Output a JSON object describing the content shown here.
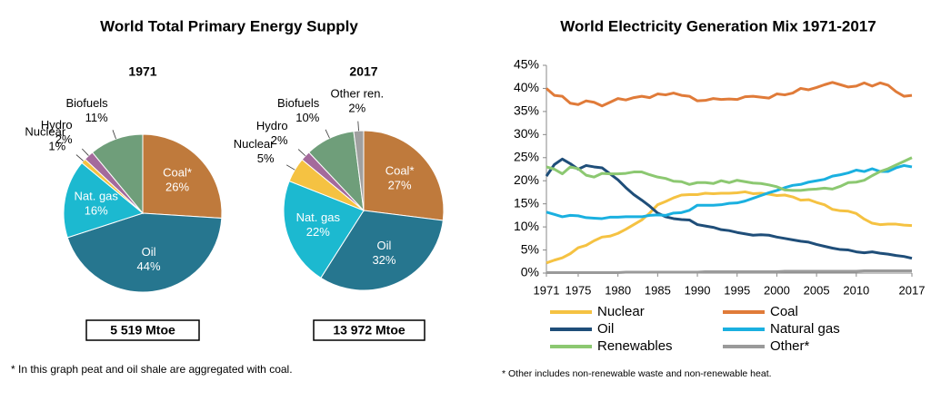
{
  "left_panel": {
    "title": "World Total Primary Energy Supply",
    "note": "* In this graph peat and oil shale are aggregated with coal."
  },
  "chart_data": [
    {
      "type": "pie",
      "title": "1971",
      "total": "5 519 Mtoe",
      "categories": [
        "Coal*",
        "Oil",
        "Nat. gas",
        "Nuclear",
        "Hydro",
        "Biofuels"
      ],
      "values": [
        26,
        44,
        16,
        1,
        2,
        11
      ],
      "value_labels": [
        "26%",
        "44%",
        "16%",
        "1%",
        "2%",
        "11%"
      ],
      "colors": [
        "#bf7a3c",
        "#26768f",
        "#1cb9d0",
        "#f5c242",
        "#a46a9c",
        "#6f9e7a"
      ]
    },
    {
      "type": "pie",
      "title": "2017",
      "total": "13 972 Mtoe",
      "categories": [
        "Coal*",
        "Oil",
        "Nat. gas",
        "Nuclear",
        "Hydro",
        "Biofuels",
        "Other ren."
      ],
      "values": [
        27,
        32,
        22,
        5,
        2,
        10,
        2
      ],
      "value_labels": [
        "27%",
        "32%",
        "22%",
        "5%",
        "2%",
        "10%",
        "2%"
      ],
      "colors": [
        "#bf7a3c",
        "#26768f",
        "#1cb9d0",
        "#f5c242",
        "#a46a9c",
        "#6f9e7a",
        "#a0a0a0"
      ]
    },
    {
      "type": "line",
      "title": "World Electricity Generation Mix 1971-2017",
      "note": "* Other includes non-renewable waste and non-renewable heat.",
      "x": [
        1971,
        1972,
        1973,
        1974,
        1975,
        1976,
        1977,
        1978,
        1979,
        1980,
        1981,
        1982,
        1983,
        1984,
        1985,
        1986,
        1987,
        1988,
        1989,
        1990,
        1991,
        1992,
        1993,
        1994,
        1995,
        1996,
        1997,
        1998,
        1999,
        2000,
        2001,
        2002,
        2003,
        2004,
        2005,
        2006,
        2007,
        2008,
        2009,
        2010,
        2011,
        2012,
        2013,
        2014,
        2015,
        2016,
        2017
      ],
      "xlim": [
        1971,
        2017
      ],
      "xticks": [
        1971,
        1975,
        1980,
        1985,
        1990,
        1995,
        2000,
        2005,
        2010,
        2017
      ],
      "ylim": [
        0,
        45
      ],
      "yticks": [
        {
          "value": 0,
          "label": "0%"
        },
        {
          "value": 5,
          "label": "5%"
        },
        {
          "value": 10,
          "label": "10%"
        },
        {
          "value": 15,
          "label": "15%"
        },
        {
          "value": 20,
          "label": "20%"
        },
        {
          "value": 25,
          "label": "25%"
        },
        {
          "value": 30,
          "label": "30%"
        },
        {
          "value": 35,
          "label": "35%"
        },
        {
          "value": 40,
          "label": "40%"
        },
        {
          "value": 45,
          "label": "45%"
        }
      ],
      "grid": false,
      "legend": "bottom",
      "series": [
        {
          "name": "Nuclear",
          "color": "#f5c242",
          "values": [
            2.2,
            2.8,
            3.3,
            4.2,
            5.5,
            6,
            7,
            7.8,
            8,
            8.6,
            9.5,
            10.5,
            11.5,
            13,
            14.8,
            15.5,
            16.3,
            16.9,
            17,
            17,
            17.3,
            17.2,
            17.3,
            17.3,
            17.4,
            17.6,
            17.2,
            17.3,
            17.1,
            16.8,
            16.9,
            16.5,
            15.8,
            15.9,
            15.3,
            14.8,
            13.8,
            13.5,
            13.4,
            12.9,
            11.7,
            10.8,
            10.5,
            10.6,
            10.6,
            10.4,
            10.3
          ]
        },
        {
          "name": "Coal",
          "color": "#e07b39",
          "values": [
            40,
            38.5,
            38.3,
            36.8,
            36.5,
            37.3,
            37,
            36.2,
            37,
            37.8,
            37.5,
            38,
            38.3,
            38,
            38.8,
            38.6,
            39,
            38.5,
            38.3,
            37.3,
            37.4,
            37.8,
            37.6,
            37.7,
            37.6,
            38.2,
            38.3,
            38.1,
            37.9,
            38.8,
            38.6,
            39,
            40,
            39.7,
            40.2,
            40.8,
            41.3,
            40.8,
            40.3,
            40.5,
            41.2,
            40.5,
            41.2,
            40.7,
            39.3,
            38.3,
            38.5
          ]
        },
        {
          "name": "Oil",
          "color": "#1f4e79",
          "values": [
            21,
            23.5,
            24.7,
            23.7,
            22.5,
            23.3,
            23,
            22.8,
            21.5,
            20.2,
            18.5,
            17,
            15.8,
            14.5,
            13,
            12.2,
            11.8,
            11.6,
            11.5,
            10.5,
            10.2,
            9.9,
            9.4,
            9.2,
            8.8,
            8.5,
            8.2,
            8.3,
            8.2,
            7.8,
            7.5,
            7.2,
            6.9,
            6.7,
            6.2,
            5.8,
            5.4,
            5.1,
            5,
            4.6,
            4.4,
            4.6,
            4.3,
            4.1,
            3.8,
            3.6,
            3.2
          ]
        },
        {
          "name": "Natural gas",
          "color": "#1ab0e0",
          "values": [
            13.2,
            12.7,
            12.2,
            12.5,
            12.4,
            12,
            11.9,
            11.8,
            12.1,
            12.1,
            12.2,
            12.2,
            12.2,
            12.5,
            12.6,
            12.5,
            13,
            13.1,
            13.6,
            14.7,
            14.7,
            14.7,
            14.8,
            15.1,
            15.2,
            15.6,
            16.2,
            16.8,
            17.4,
            17.9,
            18.5,
            19,
            19.2,
            19.7,
            20,
            20.3,
            21,
            21.3,
            21.7,
            22.3,
            22,
            22.6,
            22,
            22,
            22.8,
            23.3,
            23
          ]
        },
        {
          "name": "Renewables",
          "color": "#8cc871",
          "values": [
            23,
            22.5,
            21.5,
            23,
            22.6,
            21.2,
            20.8,
            21.6,
            21.5,
            21.5,
            21.6,
            21.9,
            21.9,
            21.3,
            20.8,
            20.5,
            19.9,
            19.8,
            19.2,
            19.6,
            19.6,
            19.4,
            20,
            19.6,
            20.1,
            19.8,
            19.5,
            19.4,
            19.1,
            18.7,
            18,
            17.9,
            17.9,
            18.1,
            18.2,
            18.4,
            18.2,
            18.8,
            19.6,
            19.7,
            20.1,
            21.1,
            22,
            22.6,
            23.4,
            24.2,
            25
          ]
        },
        {
          "name": "Other*",
          "color": "#9a9a9a",
          "values": [
            0.1,
            0.1,
            0.1,
            0.1,
            0.1,
            0.1,
            0.1,
            0.1,
            0.1,
            0.1,
            0.2,
            0.2,
            0.2,
            0.2,
            0.2,
            0.2,
            0.2,
            0.2,
            0.2,
            0.2,
            0.3,
            0.3,
            0.3,
            0.3,
            0.3,
            0.3,
            0.3,
            0.3,
            0.3,
            0.3,
            0.4,
            0.4,
            0.4,
            0.4,
            0.4,
            0.4,
            0.4,
            0.4,
            0.4,
            0.4,
            0.5,
            0.5,
            0.5,
            0.5,
            0.5,
            0.5,
            0.5
          ]
        }
      ]
    }
  ]
}
